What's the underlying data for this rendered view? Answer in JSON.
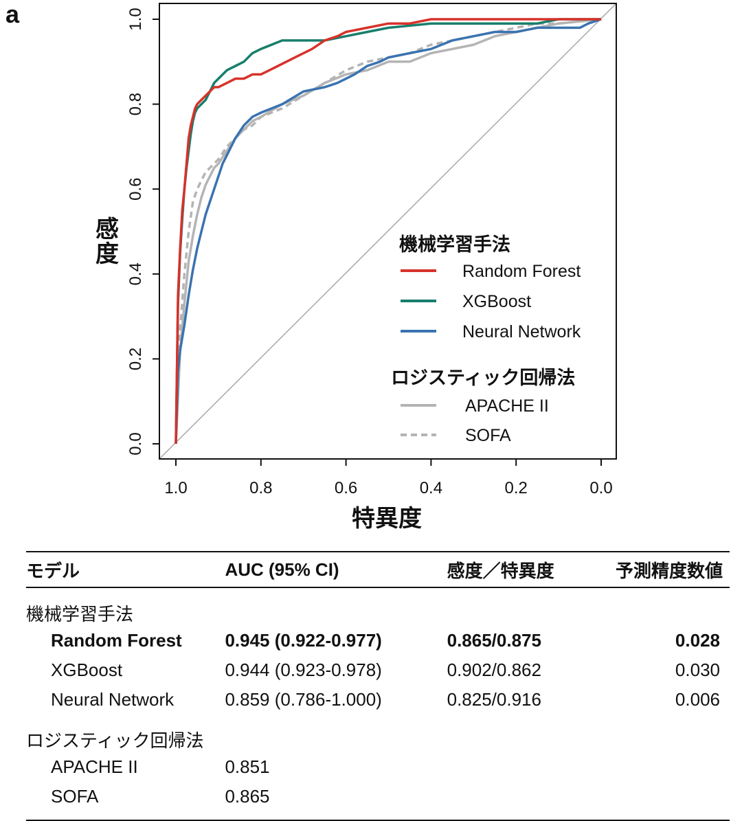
{
  "panel_label": "a",
  "chart_data": {
    "type": "line",
    "title": "",
    "xlabel": "特異度",
    "ylabel": "感度",
    "xlim": [
      1.0,
      0.0
    ],
    "ylim": [
      0.0,
      1.0
    ],
    "x_ticks": [
      "1.0",
      "0.8",
      "0.6",
      "0.4",
      "0.2",
      "0.0"
    ],
    "y_ticks": [
      "0.0",
      "0.2",
      "0.4",
      "0.6",
      "0.8",
      "1.0"
    ],
    "legend_position": "bottom-right",
    "legend_groups": [
      {
        "title": "機械学習手法",
        "entries": [
          "Random Forest",
          "XGBoost",
          "Neural Network"
        ]
      },
      {
        "title": "ロジスティック回帰法",
        "entries": [
          "APACHE II",
          "SOFA"
        ]
      }
    ],
    "reference_line": {
      "name": "chance",
      "x": [
        1.0,
        0.0
      ],
      "y": [
        0.0,
        1.0
      ],
      "color": "#a8a8a8"
    },
    "series": [
      {
        "name": "Random Forest",
        "color": "#d7322a",
        "dash": "solid",
        "x": [
          1.0,
          0.995,
          0.99,
          0.985,
          0.98,
          0.975,
          0.97,
          0.965,
          0.96,
          0.955,
          0.95,
          0.94,
          0.93,
          0.92,
          0.91,
          0.9,
          0.88,
          0.86,
          0.84,
          0.82,
          0.8,
          0.78,
          0.76,
          0.74,
          0.72,
          0.7,
          0.68,
          0.65,
          0.62,
          0.6,
          0.55,
          0.5,
          0.45,
          0.4,
          0.3,
          0.2,
          0.1,
          0.0
        ],
        "y": [
          0.0,
          0.35,
          0.46,
          0.55,
          0.6,
          0.66,
          0.72,
          0.75,
          0.77,
          0.79,
          0.8,
          0.81,
          0.82,
          0.83,
          0.84,
          0.84,
          0.85,
          0.86,
          0.86,
          0.87,
          0.87,
          0.88,
          0.89,
          0.9,
          0.91,
          0.92,
          0.93,
          0.95,
          0.96,
          0.97,
          0.98,
          0.99,
          0.99,
          1.0,
          1.0,
          1.0,
          1.0,
          1.0
        ]
      },
      {
        "name": "XGBoost",
        "color": "#177e6c",
        "dash": "solid",
        "x": [
          1.0,
          0.995,
          0.99,
          0.985,
          0.98,
          0.975,
          0.97,
          0.965,
          0.96,
          0.955,
          0.95,
          0.94,
          0.93,
          0.92,
          0.91,
          0.9,
          0.88,
          0.86,
          0.84,
          0.82,
          0.8,
          0.75,
          0.7,
          0.65,
          0.6,
          0.55,
          0.5,
          0.4,
          0.3,
          0.2,
          0.15,
          0.1,
          0.0
        ],
        "y": [
          0.0,
          0.33,
          0.45,
          0.53,
          0.6,
          0.65,
          0.69,
          0.73,
          0.76,
          0.78,
          0.79,
          0.8,
          0.81,
          0.83,
          0.85,
          0.86,
          0.88,
          0.89,
          0.9,
          0.92,
          0.93,
          0.95,
          0.95,
          0.95,
          0.96,
          0.97,
          0.98,
          0.99,
          0.99,
          0.99,
          0.99,
          1.0,
          1.0
        ]
      },
      {
        "name": "Neural Network",
        "color": "#3a73b0",
        "dash": "solid",
        "x": [
          1.0,
          0.995,
          0.99,
          0.98,
          0.97,
          0.96,
          0.95,
          0.94,
          0.93,
          0.92,
          0.91,
          0.9,
          0.89,
          0.88,
          0.87,
          0.86,
          0.84,
          0.82,
          0.8,
          0.75,
          0.7,
          0.65,
          0.62,
          0.6,
          0.58,
          0.55,
          0.52,
          0.5,
          0.45,
          0.4,
          0.35,
          0.3,
          0.25,
          0.2,
          0.15,
          0.1,
          0.05,
          0.03,
          0.0
        ],
        "y": [
          0.0,
          0.17,
          0.22,
          0.28,
          0.35,
          0.41,
          0.46,
          0.5,
          0.54,
          0.57,
          0.6,
          0.63,
          0.66,
          0.68,
          0.7,
          0.72,
          0.75,
          0.77,
          0.78,
          0.8,
          0.83,
          0.84,
          0.85,
          0.86,
          0.87,
          0.89,
          0.9,
          0.91,
          0.92,
          0.93,
          0.95,
          0.96,
          0.97,
          0.97,
          0.98,
          0.98,
          0.98,
          0.99,
          1.0
        ]
      },
      {
        "name": "APACHE II",
        "color": "#b4b4b4",
        "dash": "solid",
        "x": [
          1.0,
          0.99,
          0.98,
          0.97,
          0.96,
          0.95,
          0.94,
          0.93,
          0.92,
          0.91,
          0.9,
          0.88,
          0.86,
          0.84,
          0.82,
          0.8,
          0.75,
          0.7,
          0.65,
          0.6,
          0.55,
          0.5,
          0.45,
          0.4,
          0.35,
          0.3,
          0.25,
          0.2,
          0.15,
          0.1,
          0.0
        ],
        "y": [
          0.0,
          0.22,
          0.33,
          0.43,
          0.49,
          0.54,
          0.58,
          0.61,
          0.63,
          0.65,
          0.66,
          0.69,
          0.72,
          0.74,
          0.76,
          0.77,
          0.8,
          0.82,
          0.85,
          0.87,
          0.88,
          0.9,
          0.9,
          0.92,
          0.93,
          0.94,
          0.96,
          0.97,
          0.98,
          0.99,
          1.0
        ]
      },
      {
        "name": "SOFA",
        "color": "#b4b4b4",
        "dash": "dashed",
        "x": [
          1.0,
          0.99,
          0.98,
          0.97,
          0.96,
          0.95,
          0.94,
          0.93,
          0.92,
          0.91,
          0.9,
          0.88,
          0.86,
          0.84,
          0.82,
          0.8,
          0.75,
          0.7,
          0.65,
          0.6,
          0.55,
          0.5,
          0.45,
          0.4,
          0.35,
          0.3,
          0.25,
          0.2,
          0.15,
          0.1,
          0.0
        ],
        "y": [
          0.0,
          0.27,
          0.4,
          0.5,
          0.57,
          0.6,
          0.62,
          0.64,
          0.65,
          0.66,
          0.67,
          0.7,
          0.72,
          0.74,
          0.75,
          0.77,
          0.79,
          0.82,
          0.85,
          0.88,
          0.9,
          0.91,
          0.92,
          0.94,
          0.95,
          0.96,
          0.97,
          0.98,
          0.99,
          0.99,
          1.0
        ]
      }
    ]
  },
  "table": {
    "headers": [
      "モデル",
      "AUC (95% CI)",
      "感度／特異度",
      "予測精度数値"
    ],
    "groups": [
      {
        "title": "機械学習手法",
        "rows": [
          {
            "model": "Random Forest",
            "auc": "0.945 (0.922-0.977)",
            "sens_spec": "0.865/0.875",
            "metric": "0.028",
            "bold": true
          },
          {
            "model": "XGBoost",
            "auc": "0.944 (0.923-0.978)",
            "sens_spec": "0.902/0.862",
            "metric": "0.030",
            "bold": false
          },
          {
            "model": "Neural Network",
            "auc": "0.859 (0.786-1.000)",
            "sens_spec": "0.825/0.916",
            "metric": "0.006",
            "bold": false
          }
        ]
      },
      {
        "title": "ロジスティック回帰法",
        "rows": [
          {
            "model": "APACHE II",
            "auc": "0.851",
            "sens_spec": "",
            "metric": "",
            "bold": false
          },
          {
            "model": "SOFA",
            "auc": "0.865",
            "sens_spec": "",
            "metric": "",
            "bold": false
          }
        ]
      }
    ]
  }
}
